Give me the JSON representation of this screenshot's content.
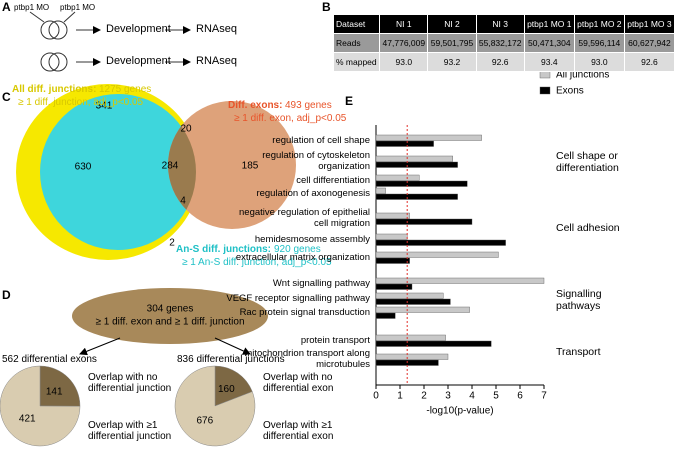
{
  "panel_a": {
    "label": "A",
    "treatment": "ptbp1 MO",
    "step1": "Development",
    "step2": "RNAseq"
  },
  "panel_b": {
    "label": "B",
    "table": {
      "header": [
        "Dataset",
        "NI 1",
        "NI 2",
        "NI 3",
        "ptbp1 MO 1",
        "ptbp1 MO 2",
        "ptbp1 MO 3"
      ],
      "rows": [
        [
          "Reads",
          "47,776,009",
          "59,501,795",
          "55,832,172",
          "50,471,304",
          "59,596,114",
          "60,627,942"
        ],
        [
          "% mapped",
          "93.0",
          "93.2",
          "92.6",
          "93.4",
          "93.0",
          "92.6"
        ]
      ]
    }
  },
  "panel_c": {
    "label": "C",
    "sets": [
      {
        "title": "All diff. junctions:",
        "count": "1275 genes",
        "criterion": "≥ 1 diff. junction, adj_p<0.05"
      },
      {
        "title": "Diff. exons:",
        "count": "493 genes",
        "criterion": "≥ 1 diff. exon, adj_p<0.05"
      },
      {
        "title": "An-S diff. junctions:",
        "count": "920 genes",
        "criterion": "≥ 1 An-S diff. junction, adj_p<0.05"
      }
    ],
    "regions": [
      341,
      20,
      630,
      284,
      185,
      4,
      2
    ]
  },
  "panel_d": {
    "label": "D",
    "center": {
      "count": "304 genes",
      "criterion": "≥ 1 diff. exon and ≥ 1 diff. junction"
    }
  },
  "panel_e": {
    "label": "E"
  },
  "chart_data": [
    {
      "type": "pie",
      "title": "562 differential exons",
      "categories": [
        "Overlap with no differential junction",
        "Overlap with ≥1 differential junction"
      ],
      "values": [
        141,
        421
      ],
      "colors": [
        "#7d6844",
        "#d9ccb0"
      ]
    },
    {
      "type": "pie",
      "title": "836 differential junctions",
      "categories": [
        "Overlap with no differential exon",
        "Overlap with ≥1 differential exon"
      ],
      "values": [
        160,
        676
      ],
      "colors": [
        "#7d6844",
        "#d9ccb0"
      ]
    },
    {
      "type": "hbar",
      "xlabel": "-log10(p-value)",
      "categories": [
        "regulation of cell shape",
        "regulation of cytoskeleton organization",
        "cell differentiation",
        "regulation of axonogenesis",
        "negative regulation of epithelial cell migration",
        "hemidesmosome assembly",
        "extracellular matrix organization",
        "Wnt signalling pathway",
        "VEGF receptor signalling pathway",
        "Rac protein signal transduction",
        "protein transport",
        "mitochondrion transport along microtubules"
      ],
      "groups": [
        "Cell shape or differentiation",
        "Cell adhesion",
        "Signalling pathways",
        "Transport"
      ],
      "series": [
        {
          "name": "All junctions",
          "color": "#c8c8c8",
          "values": [
            4.4,
            3.2,
            1.8,
            0.4,
            1.4,
            1.3,
            5.1,
            7.0,
            2.8,
            3.9,
            2.9,
            3.0
          ]
        },
        {
          "name": "Exons",
          "color": "#000000",
          "values": [
            2.4,
            3.4,
            3.8,
            3.4,
            4.0,
            5.4,
            1.4,
            1.5,
            3.1,
            0.8,
            4.8,
            2.6
          ]
        }
      ],
      "threshold": {
        "value": 1.3,
        "color": "#e0302a"
      },
      "xlim": [
        0,
        7
      ],
      "xticks": [
        0,
        1,
        2,
        3,
        4,
        5,
        6,
        7
      ]
    }
  ]
}
